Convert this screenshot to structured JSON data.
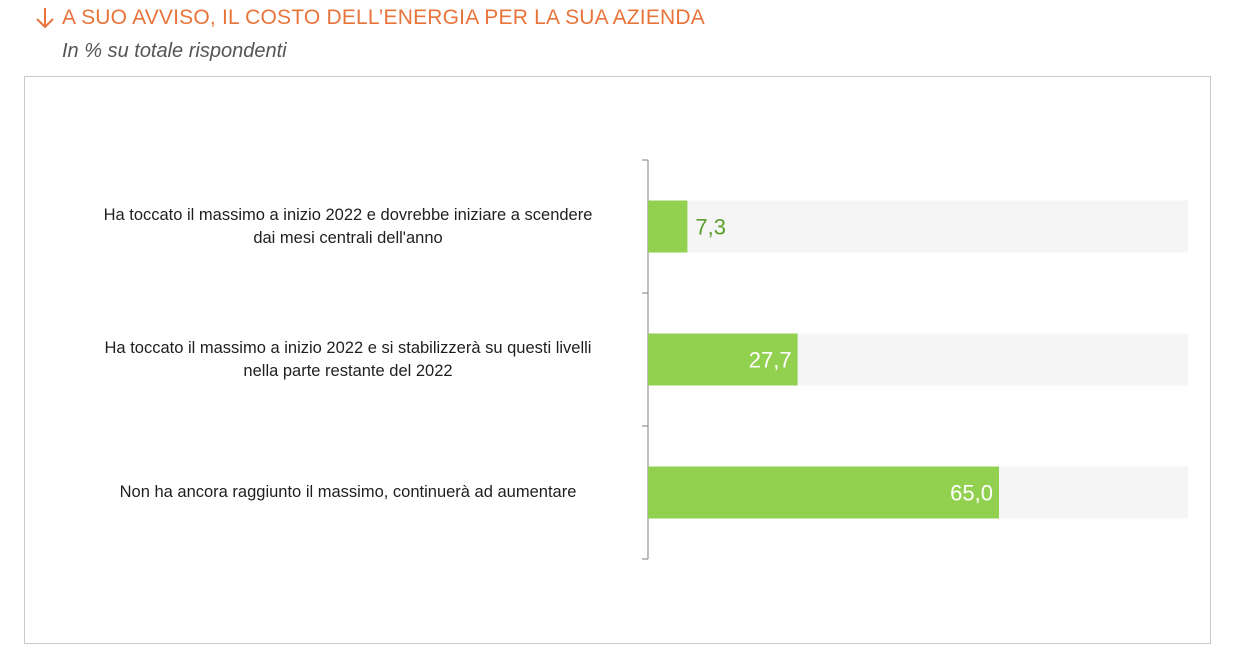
{
  "header": {
    "title": "A SUO AVVISO, IL COSTO DELL’ENERGIA PER LA SUA AZIENDA",
    "subtitle": "In % su totale rispondenti",
    "title_icon": "arrow-down-icon"
  },
  "colors": {
    "title": "#e8743b",
    "bar": "#92d050",
    "track": "#f5f5f5",
    "label_outside": "#5aa02c",
    "label_inside": "#ffffff"
  },
  "chart_data": {
    "type": "bar",
    "orientation": "horizontal",
    "categories": [
      "Ha toccato il massimo a inizio 2022 e dovrebbe iniziare a scendere dai mesi centrali dell'anno",
      "Ha toccato il massimo a inizio 2022 e si stabilizzerà su questi livelli nella parte restante del 2022",
      "Non ha ancora raggiunto il massimo, continuerà ad aumentare"
    ],
    "category_lines": [
      [
        "Ha toccato il massimo a inizio 2022 e dovrebbe iniziare a scendere",
        "dai mesi centrali dell'anno"
      ],
      [
        "Ha toccato il massimo a inizio 2022 e si stabilizzerà su questi livelli",
        "nella parte restante del 2022"
      ],
      [
        "Non ha ancora raggiunto il massimo, continuerà ad aumentare"
      ]
    ],
    "values": [
      7.3,
      27.7,
      65.0
    ],
    "value_labels": [
      "7,3",
      "27,7",
      "65,0"
    ],
    "xlim": [
      0,
      100
    ],
    "grid": false,
    "legend": "none"
  }
}
